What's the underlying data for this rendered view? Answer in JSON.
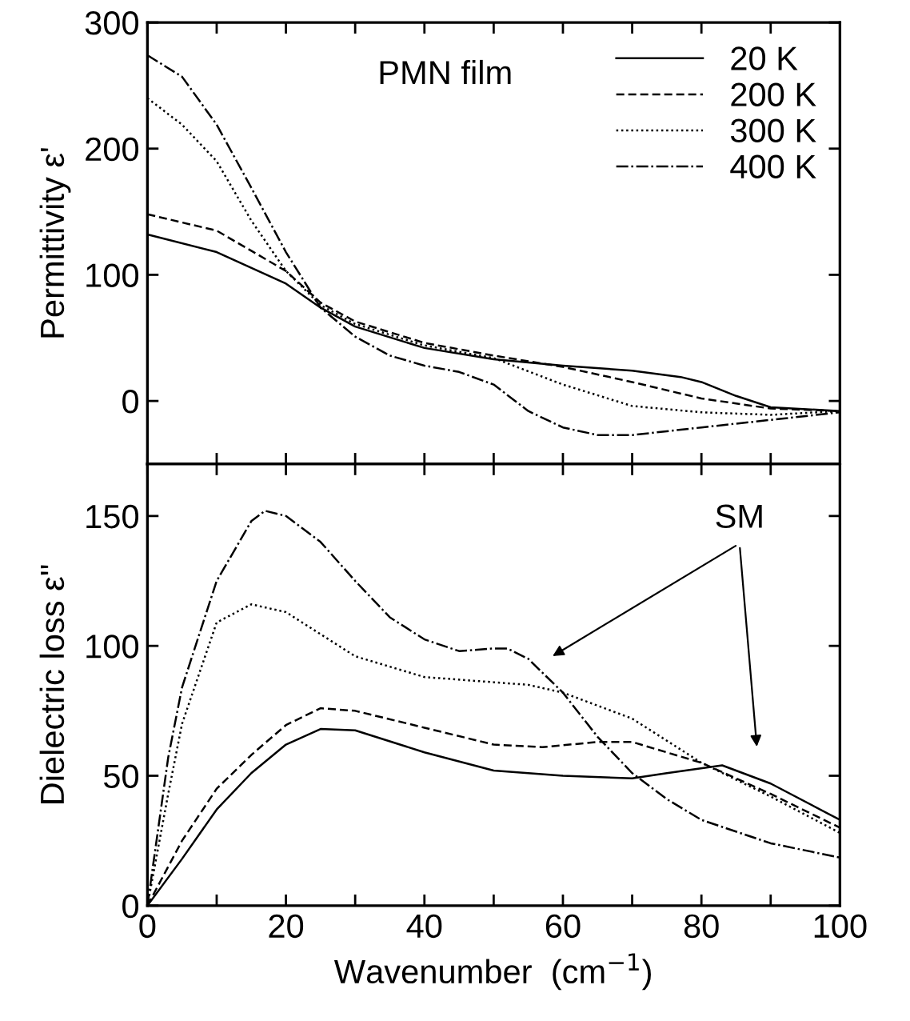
{
  "chart_data": [
    {
      "type": "line",
      "ylabel": "Permittivity ε'",
      "xlim": [
        0,
        100
      ],
      "ylim": [
        -50,
        300
      ],
      "xticks": [
        0,
        {
          "value": 10,
          "label": null
        },
        20,
        {
          "value": 30,
          "label": null
        },
        40,
        {
          "value": 50,
          "label": null
        },
        60,
        {
          "value": 70,
          "label": null
        },
        80,
        {
          "value": 90,
          "label": null
        },
        100
      ],
      "yticks": [
        0,
        100,
        200,
        300
      ],
      "tick_labels": "y",
      "legend": "top right",
      "grid": false,
      "annotations": [
        "PMN film"
      ],
      "series": [
        {
          "name": "20 K",
          "color": "#000000",
          "line_style": "solid",
          "x": [
            0,
            10,
            20,
            25,
            30,
            40,
            50,
            60,
            70,
            77,
            80,
            85,
            90,
            100
          ],
          "values": [
            132,
            118,
            93,
            74,
            59,
            42,
            33,
            28,
            24,
            19,
            15,
            4,
            -5,
            -8
          ]
        },
        {
          "name": "200 K",
          "color": "#000000",
          "line_style": "dashed",
          "x": [
            0,
            10,
            20,
            25,
            30,
            40,
            50,
            60,
            70,
            80,
            90,
            100
          ],
          "values": [
            148,
            135,
            103,
            78,
            63,
            46,
            36,
            27,
            15,
            2,
            -6,
            -8
          ]
        },
        {
          "name": "300 K",
          "color": "#000000",
          "line_style": "dotted",
          "x": [
            0,
            5,
            10,
            15,
            20,
            25,
            30,
            40,
            50,
            60,
            70,
            80,
            90,
            100
          ],
          "values": [
            240,
            219,
            190,
            143,
            103,
            76,
            61,
            44,
            34,
            13,
            -4,
            -9,
            -11,
            -8
          ]
        },
        {
          "name": "400 K",
          "color": "#000000",
          "line_style": "dashdot",
          "x": [
            0,
            5,
            10,
            15,
            20,
            25,
            30,
            35,
            40,
            45,
            50,
            55,
            60,
            65,
            70,
            80,
            90,
            100
          ],
          "values": [
            274,
            257,
            219,
            169,
            118,
            74,
            51,
            36,
            28,
            23,
            13,
            -8,
            -21,
            -27,
            -27,
            -21,
            -15,
            -9
          ]
        }
      ]
    },
    {
      "type": "line",
      "xlabel": "Wavenumber  (cm$^{−1}$)",
      "ylabel": "Dielectric loss ε''",
      "xlim": [
        0,
        100
      ],
      "ylim": [
        0,
        170
      ],
      "xticks": [
        0,
        {
          "value": 10,
          "label": null
        },
        20,
        {
          "value": 30,
          "label": null
        },
        40,
        {
          "value": 50,
          "label": null
        },
        60,
        {
          "value": 70,
          "label": null
        },
        80,
        {
          "value": 90,
          "label": null
        },
        100
      ],
      "yticks": [
        0,
        50,
        100,
        150
      ],
      "grid": false,
      "annotations": [
        "SM"
      ],
      "series": [
        {
          "color": "#000000",
          "line_style": "solid",
          "x": [
            0,
            5,
            10,
            15,
            20,
            25,
            30,
            40,
            50,
            60,
            70,
            75,
            83,
            90,
            100
          ],
          "values": [
            0,
            18,
            37,
            51,
            62,
            68,
            67.5,
            59,
            52,
            50,
            49,
            51,
            54,
            47,
            33
          ]
        },
        {
          "color": "#000000",
          "line_style": "dashed",
          "x": [
            0,
            5,
            10,
            15,
            20,
            25,
            30,
            40,
            50,
            57,
            65,
            70,
            80,
            90,
            100
          ],
          "values": [
            0,
            25,
            45,
            58,
            69.5,
            76,
            75,
            68.5,
            62,
            61,
            63,
            63,
            55,
            43,
            30
          ]
        },
        {
          "color": "#000000",
          "line_style": "dotted",
          "x": [
            0,
            3,
            5,
            10,
            15,
            20,
            30,
            40,
            50,
            55,
            60,
            70,
            80,
            90,
            100
          ],
          "values": [
            0,
            43,
            70,
            109,
            116,
            113,
            96,
            88,
            86,
            85,
            82,
            72,
            55,
            42,
            28
          ]
        },
        {
          "color": "#000000",
          "line_style": "dashdot",
          "x": [
            0,
            3,
            5,
            10,
            15,
            17,
            20,
            25,
            30,
            35,
            40,
            45,
            50,
            52,
            55,
            60,
            65,
            70,
            75,
            80,
            90,
            100
          ],
          "values": [
            0,
            57,
            84,
            125,
            148,
            152,
            150,
            140,
            125,
            111,
            102.5,
            98,
            99,
            99,
            95,
            82,
            65,
            51,
            41,
            33,
            24,
            18.5
          ]
        }
      ]
    }
  ]
}
